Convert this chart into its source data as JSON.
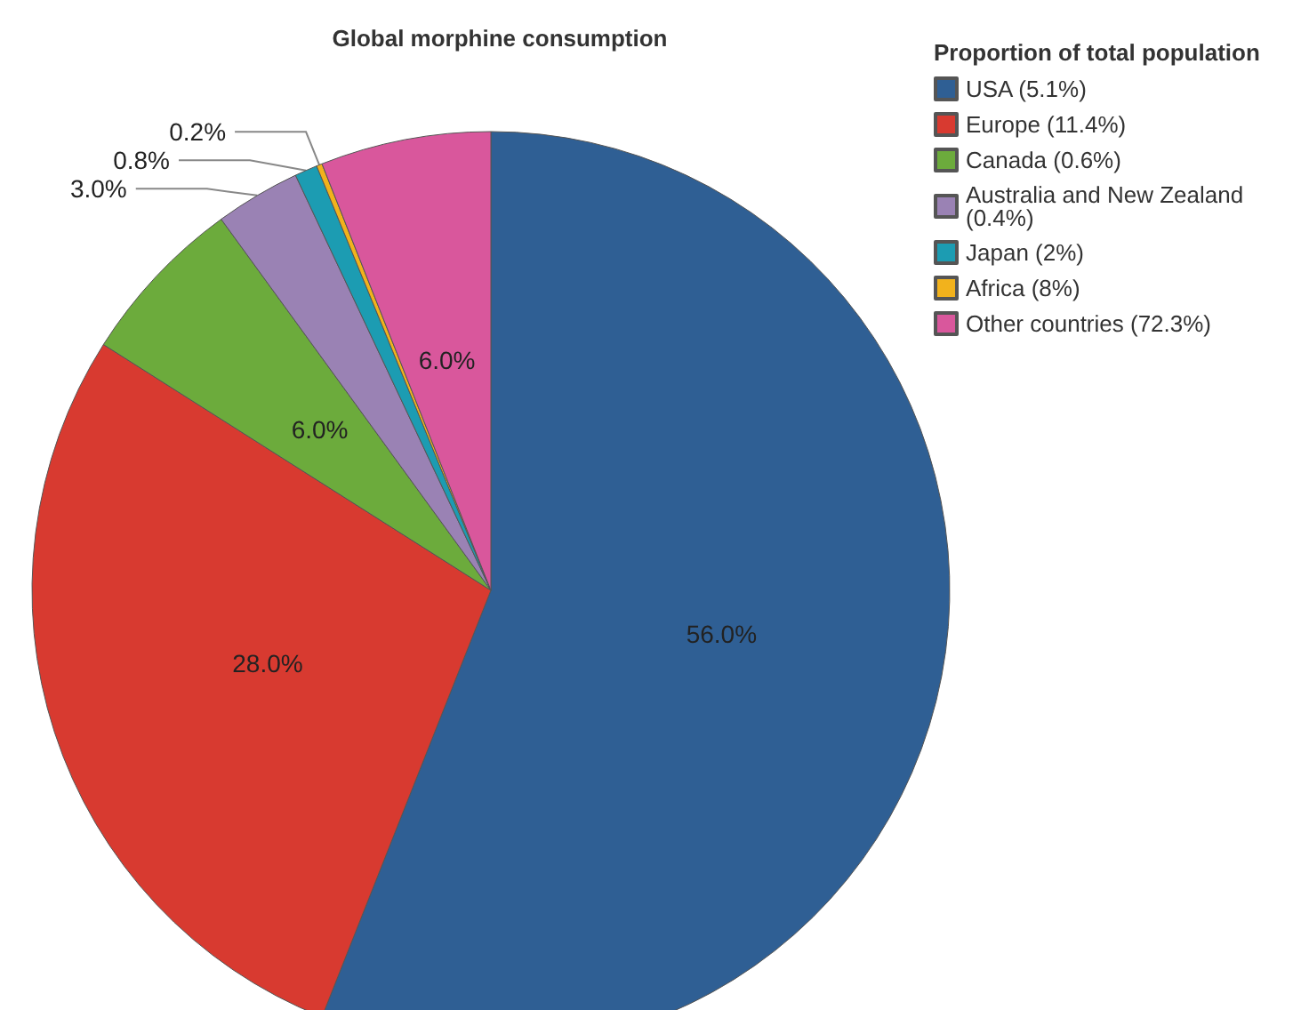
{
  "chart_data": {
    "type": "pie",
    "title": "Global morphine consumption",
    "legend_title": "Proportion of total population",
    "categories": [
      "USA (5.1%)",
      "Europe (11.4%)",
      "Canada (0.6%)",
      "Australia and New Zealand (0.4%)",
      "Japan (2%)",
      "Africa (8%)",
      "Other countries (72.3%)"
    ],
    "values": [
      56,
      28,
      6,
      3,
      0.8,
      0.2,
      6
    ],
    "value_labels": [
      "56.0%",
      "28.0%",
      "6.0%",
      "3.0%",
      "0.8%",
      "0.2%",
      "6.0%"
    ],
    "colors": [
      "#2f5f94",
      "#d83a30",
      "#6cab3c",
      "#9a82b4",
      "#1c9cb2",
      "#f2b21c",
      "#d9579c"
    ],
    "legend": "top right"
  }
}
